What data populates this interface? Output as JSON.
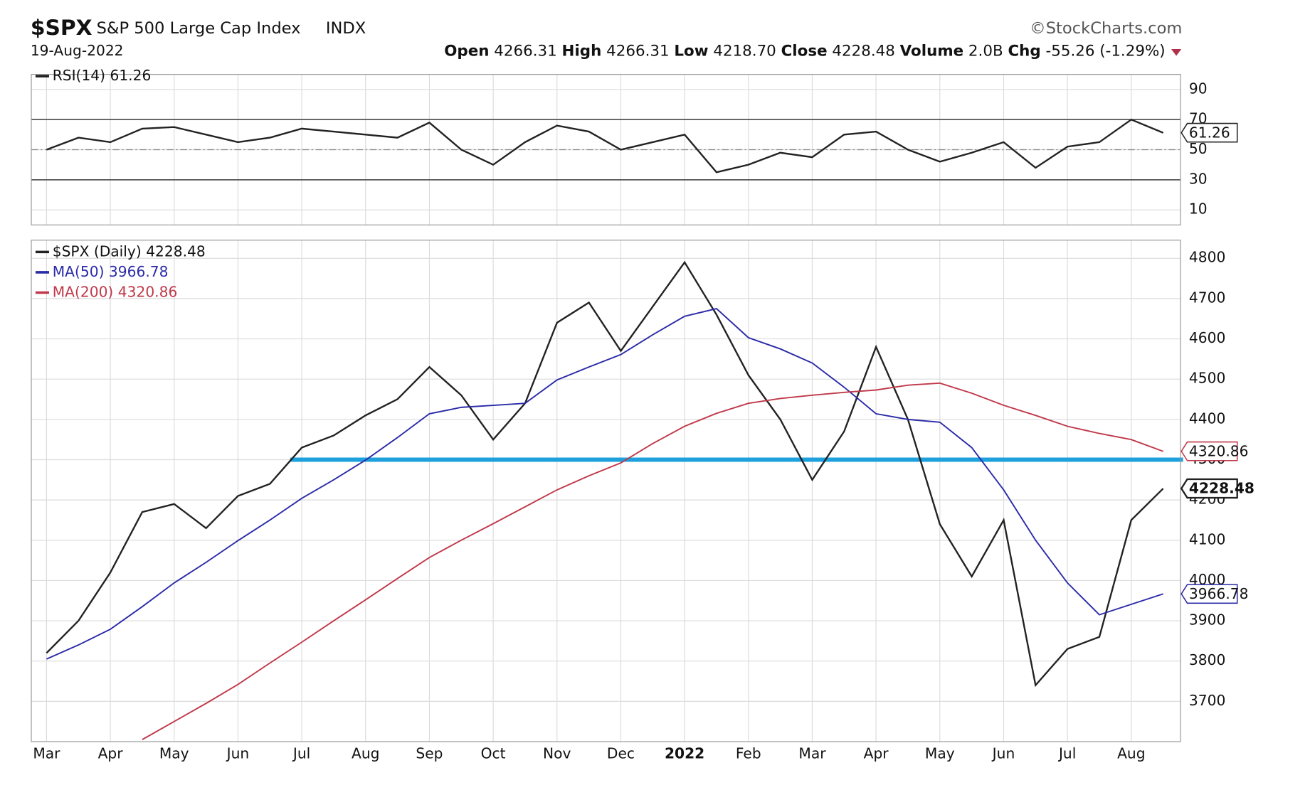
{
  "header": {
    "symbol": "$SPX",
    "name": "S&P 500 Large Cap Index",
    "exchange": "INDX",
    "date": "19-Aug-2022",
    "source": "©StockCharts.com",
    "open_label": "Open",
    "open": "4266.31",
    "high_label": "High",
    "high": "4266.31",
    "low_label": "Low",
    "low": "4218.70",
    "close_label": "Close",
    "close": "4228.48",
    "volume_label": "Volume",
    "volume": "2.0B",
    "chg_label": "Chg",
    "chg": "-55.26 (-1.29%)"
  },
  "chart_data": [
    {
      "type": "line",
      "ylim": [
        0,
        100
      ],
      "yticks": [
        10,
        30,
        50,
        70,
        90
      ],
      "grid": true,
      "reference_lines": [
        30,
        50,
        70
      ],
      "series": [
        {
          "name": "RSI(14)",
          "color": "#222222",
          "values": [
            50,
            58,
            55,
            64,
            65,
            60,
            55,
            58,
            64,
            62,
            60,
            58,
            68,
            50,
            40,
            55,
            66,
            62,
            50,
            55,
            60,
            35,
            40,
            48,
            45,
            60,
            62,
            50,
            42,
            48,
            55,
            38,
            52,
            55,
            70,
            61.26
          ]
        }
      ]
    },
    {
      "type": "line",
      "ylim": [
        3600,
        4845
      ],
      "yticks": [
        3700,
        3800,
        3900,
        4000,
        4100,
        4200,
        4300,
        4400,
        4500,
        4600,
        4700,
        4800
      ],
      "grid": true,
      "reference_lines": [
        4300
      ],
      "reference_color": "#1ea0dc",
      "categories": [
        "Mar",
        null,
        "Apr",
        null,
        "May",
        null,
        "Jun",
        null,
        "Jul",
        null,
        "Aug",
        null,
        "Sep",
        null,
        "Oct",
        null,
        "Nov",
        null,
        "Dec",
        null,
        "2022",
        null,
        "Feb",
        null,
        "Mar",
        null,
        "Apr",
        null,
        "May",
        null,
        "Jun",
        null,
        "Jul",
        null,
        "Aug",
        null
      ],
      "series": [
        {
          "name": "$SPX (Daily)",
          "color": "#222222",
          "values": [
            3820,
            3900,
            4020,
            4170,
            4190,
            4130,
            4210,
            4240,
            4330,
            4360,
            4410,
            4450,
            4530,
            4460,
            4350,
            4440,
            4640,
            4690,
            4570,
            4680,
            4790,
            4660,
            4510,
            4400,
            4250,
            4370,
            4580,
            4400,
            4140,
            4010,
            4150,
            3740,
            3830,
            3860,
            4150,
            4228.48
          ]
        },
        {
          "name": "MA(50)",
          "color": "#2b2ba8",
          "values": [
            3805,
            3840,
            3879,
            3935,
            3994,
            4045,
            4099,
            4150,
            4204,
            4250,
            4299,
            4355,
            4414,
            4430,
            4435,
            4440,
            4498,
            4530,
            4561,
            4610,
            4656,
            4675,
            4603,
            4575,
            4540,
            4480,
            4414,
            4400,
            4393,
            4330,
            4225,
            4100,
            3994,
            3915,
            3941,
            3966.78
          ]
        },
        {
          "name": "MA(200)",
          "color": "#c0394a",
          "values": [
            null,
            null,
            null,
            3605,
            3650,
            3695,
            3742,
            3795,
            3847,
            3900,
            3952,
            4005,
            4057,
            4100,
            4141,
            4183,
            4225,
            4260,
            4292,
            4340,
            4383,
            4415,
            4440,
            4452,
            4460,
            4467,
            4473,
            4485,
            4490,
            4465,
            4435,
            4410,
            4383,
            4365,
            4350,
            4320.86
          ]
        }
      ]
    }
  ]
}
